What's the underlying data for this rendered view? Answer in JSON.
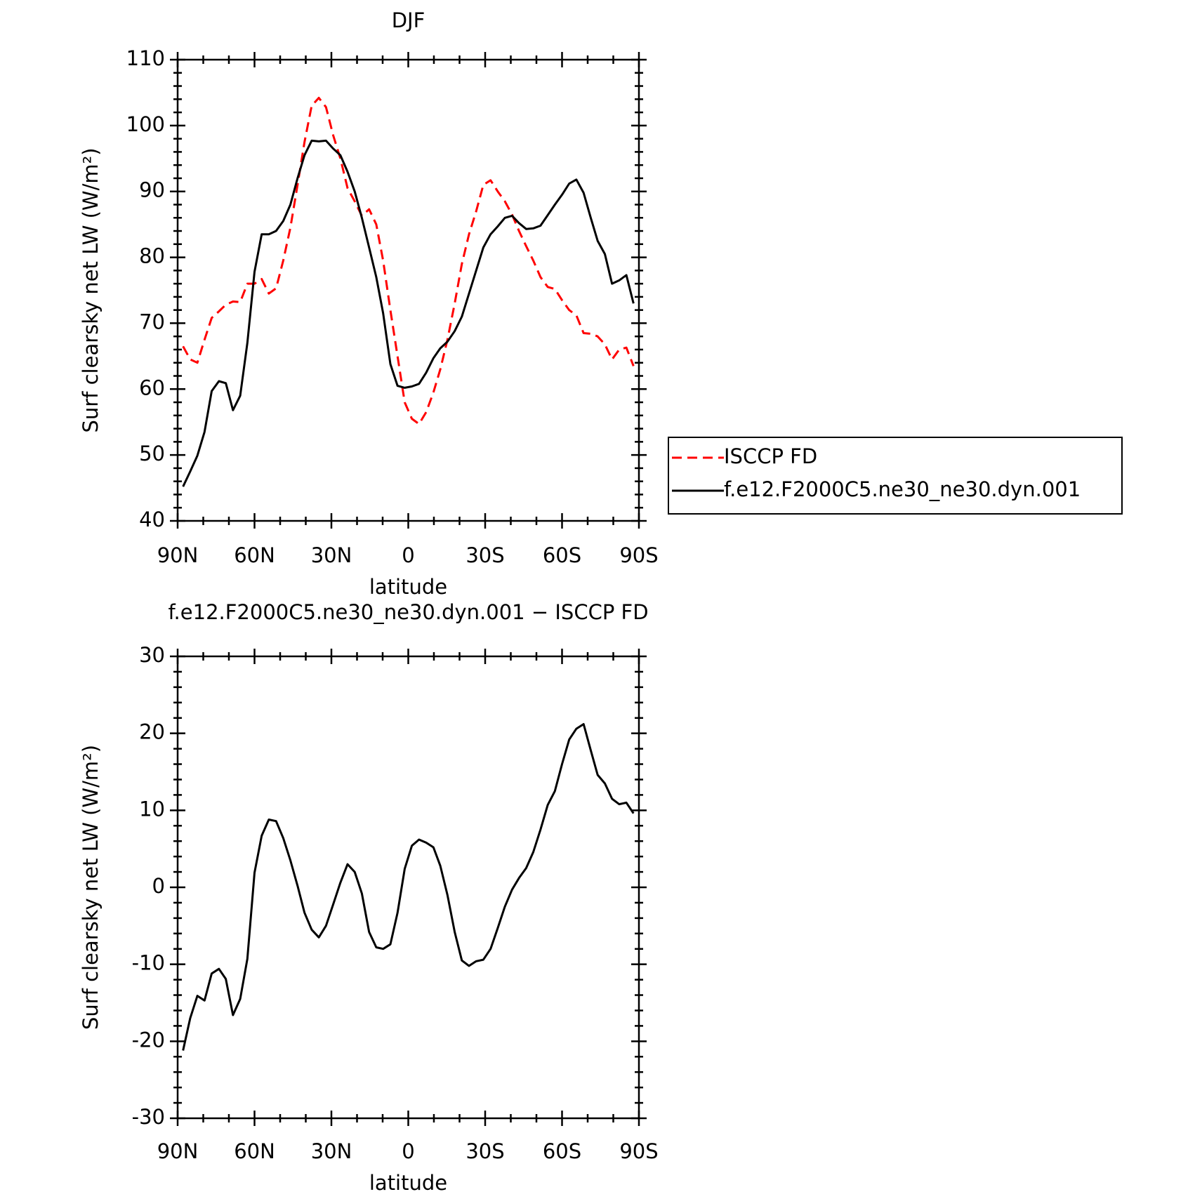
{
  "chart_data": [
    {
      "type": "line",
      "title": "DJF",
      "xlabel": "latitude",
      "ylabel": "Surf clearsky net LW (W/m²)",
      "x": [
        87.9,
        85.1,
        82.3,
        79.5,
        76.7,
        73.9,
        71.2,
        68.4,
        65.6,
        62.8,
        60.0,
        57.2,
        54.4,
        51.6,
        48.8,
        46.0,
        43.2,
        40.5,
        37.7,
        34.9,
        32.1,
        29.3,
        26.5,
        23.7,
        20.9,
        18.1,
        15.3,
        12.5,
        9.8,
        7.0,
        4.2,
        1.4,
        -1.4,
        -4.2,
        -7.0,
        -9.8,
        -12.5,
        -15.3,
        -18.1,
        -20.9,
        -23.7,
        -26.5,
        -29.3,
        -32.1,
        -34.9,
        -37.7,
        -40.5,
        -43.2,
        -46.0,
        -48.8,
        -51.6,
        -54.4,
        -57.2,
        -60.0,
        -62.8,
        -65.6,
        -68.4,
        -71.2,
        -73.9,
        -76.7,
        -79.5,
        -82.3,
        -85.1,
        -87.9
      ],
      "series": [
        {
          "name": "ISCCP FD",
          "color": "#ff0000",
          "line_style": "dashed",
          "values": [
            66.5,
            64.5,
            64,
            67.5,
            70.8,
            71.8,
            72.8,
            73.3,
            73.2,
            76,
            76,
            76.7,
            74.5,
            75.3,
            79.5,
            84.5,
            91,
            97.5,
            103,
            104.2,
            102.8,
            98.5,
            95,
            90.5,
            88.5,
            86.3,
            87.3,
            85,
            79.5,
            72,
            65,
            58,
            55.5,
            54.7,
            56.5,
            59.5,
            63,
            67.5,
            73,
            79,
            83.5,
            87,
            91,
            91.7,
            90,
            88.5,
            86.5,
            84,
            81.7,
            79.5,
            77,
            75.5,
            75.2,
            73.5,
            72,
            71.2,
            68.5,
            68.4,
            68,
            66.8,
            64.5,
            66,
            66.3,
            63.5
          ]
        },
        {
          "name": "f.e12.F2000C5.ne30_ne30.dyn.001",
          "color": "#000000",
          "line_style": "solid",
          "values": [
            45.2,
            47.5,
            49.9,
            53.5,
            59.7,
            61.2,
            60.9,
            56.8,
            59,
            67,
            77.8,
            83.5,
            83.5,
            84,
            85.5,
            88,
            92,
            95.5,
            97.7,
            97.6,
            97.7,
            96.5,
            95.5,
            93,
            90,
            86,
            81.5,
            77,
            71.5,
            63.8,
            60.5,
            60.2,
            60.4,
            60.8,
            62.5,
            64.7,
            66.2,
            67.2,
            68.8,
            71,
            74.5,
            78,
            81.5,
            83.5,
            84.7,
            86,
            86.3,
            85.2,
            84.3,
            84.4,
            84.8,
            86.4,
            88,
            89.5,
            91.2,
            91.8,
            89.8,
            86,
            82.5,
            80.5,
            76,
            76.5,
            77.3,
            73
          ]
        }
      ],
      "xlim": [
        90,
        -90
      ],
      "xticks": [
        {
          "value": 90,
          "label": "90N"
        },
        {
          "value": 60,
          "label": "60N"
        },
        {
          "value": 30,
          "label": "30N"
        },
        0,
        {
          "value": -30,
          "label": "30S"
        },
        {
          "value": -60,
          "label": "60S"
        },
        {
          "value": -90,
          "label": "90S"
        }
      ],
      "ylim": [
        40,
        110
      ],
      "yticks": [
        40,
        50,
        60,
        70,
        80,
        90,
        100,
        110
      ],
      "legend": "right",
      "grid": false
    },
    {
      "type": "line",
      "title": "f.e12.F2000C5.ne30_ne30.dyn.001 − ISCCP FD",
      "xlabel": "latitude",
      "ylabel": "Surf clearsky net LW (W/m²)",
      "x": [
        87.9,
        85.1,
        82.3,
        79.5,
        76.7,
        73.9,
        71.2,
        68.4,
        65.6,
        62.8,
        60.0,
        57.2,
        54.4,
        51.6,
        48.8,
        46.0,
        43.2,
        40.5,
        37.7,
        34.9,
        32.1,
        29.3,
        26.5,
        23.7,
        20.9,
        18.1,
        15.3,
        12.5,
        9.8,
        7.0,
        4.2,
        1.4,
        -1.4,
        -4.2,
        -7.0,
        -9.8,
        -12.5,
        -15.3,
        -18.1,
        -20.9,
        -23.7,
        -26.5,
        -29.3,
        -32.1,
        -34.9,
        -37.7,
        -40.5,
        -43.2,
        -46.0,
        -48.8,
        -51.6,
        -54.4,
        -57.2,
        -60.0,
        -62.8,
        -65.6,
        -68.4,
        -71.2,
        -73.9,
        -76.7,
        -79.5,
        -82.3,
        -85.1,
        -87.9
      ],
      "series": [
        {
          "color": "#000000",
          "line_style": "solid",
          "values": [
            -21.2,
            -17,
            -14.1,
            -14.7,
            -11.2,
            -10.6,
            -11.9,
            -16.6,
            -14.5,
            -9.3,
            1.9,
            6.7,
            8.8,
            8.6,
            6.4,
            3.5,
            0.2,
            -3.3,
            -5.5,
            -6.5,
            -5,
            -2.2,
            0.6,
            3,
            2,
            -0.8,
            -5.8,
            -7.8,
            -8,
            -7.4,
            -3.3,
            2.4,
            5.4,
            6.2,
            5.8,
            5.2,
            2.8,
            -1,
            -5.8,
            -9.5,
            -10.2,
            -9.6,
            -9.4,
            -8,
            -5.3,
            -2.5,
            -0.3,
            1.2,
            2.5,
            4.6,
            7.5,
            10.7,
            12.5,
            16,
            19.2,
            20.6,
            21.2,
            17.8,
            14.6,
            13.5,
            11.5,
            10.8,
            11,
            9.6
          ]
        }
      ],
      "xlim": [
        90,
        -90
      ],
      "xticks": [
        {
          "value": 90,
          "label": "90N"
        },
        {
          "value": 60,
          "label": "60N"
        },
        {
          "value": 30,
          "label": "30N"
        },
        0,
        {
          "value": -30,
          "label": "30S"
        },
        {
          "value": -60,
          "label": "60S"
        },
        {
          "value": -90,
          "label": "90S"
        }
      ],
      "ylim": [
        -30,
        30
      ],
      "yticks": [
        -30,
        -20,
        -10,
        0,
        10,
        20,
        30
      ],
      "grid": false
    }
  ]
}
